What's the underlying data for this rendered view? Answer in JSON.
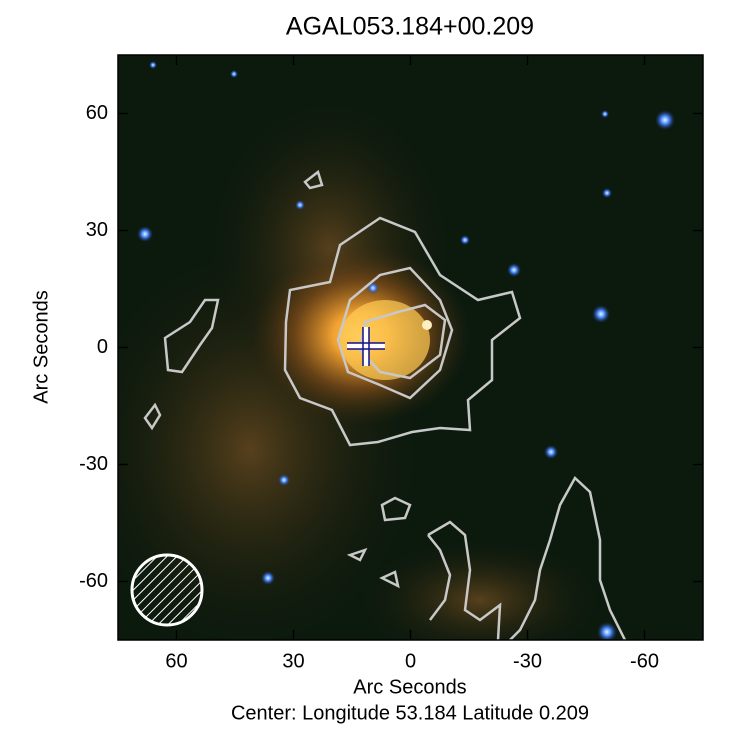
{
  "chart_data": {
    "type": "image",
    "title": "AGAL053.184+00.209",
    "x_label": "Arc Seconds",
    "y_label": "Arc Seconds",
    "footer": "Center:  Longitude 53.184 Latitude 0.209",
    "xlim": [
      75,
      -75
    ],
    "xticks": [
      60,
      30,
      0,
      -30,
      -60
    ],
    "ylim": [
      -75,
      75
    ],
    "yticks": [
      -60,
      -30,
      0,
      30,
      60
    ]
  }
}
